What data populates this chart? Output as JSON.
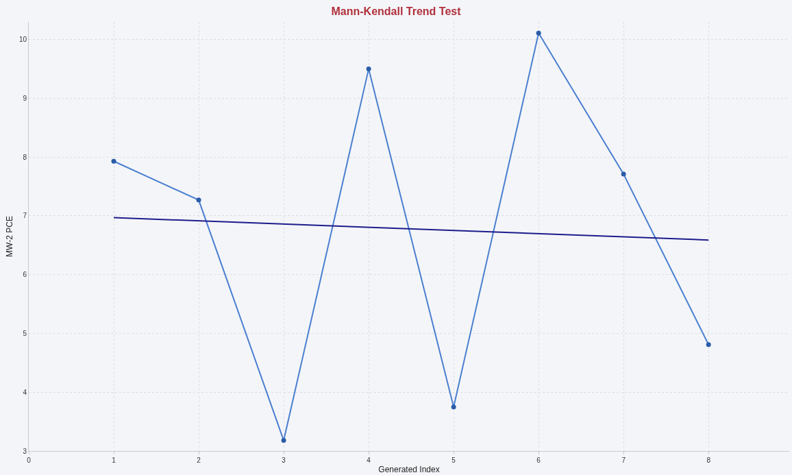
{
  "chart_data": {
    "type": "line",
    "title": "Mann-Kendall Trend Test",
    "xlabel": "Generated Index",
    "ylabel": "MW-2 PCE",
    "x": [
      1,
      2,
      3,
      4,
      5,
      6,
      7,
      8
    ],
    "series": [
      {
        "color": "#4a7fd0",
        "values": [
          7.93,
          7.27,
          3.18,
          9.5,
          3.75,
          10.11,
          7.71,
          4.81
        ],
        "marker": "circle"
      },
      {
        "type": "line",
        "color": "#1c1c8c",
        "x": [
          1,
          8
        ],
        "values": [
          6.97,
          6.59
        ],
        "marker": "none"
      }
    ],
    "xlim": [
      0,
      8.95
    ],
    "xticks": [
      0,
      1,
      2,
      3,
      4,
      5,
      6,
      7,
      8
    ],
    "ylim": [
      3,
      10.3
    ],
    "yticks": [
      3,
      4,
      5,
      6,
      7,
      8,
      9,
      10
    ],
    "grid": true
  }
}
